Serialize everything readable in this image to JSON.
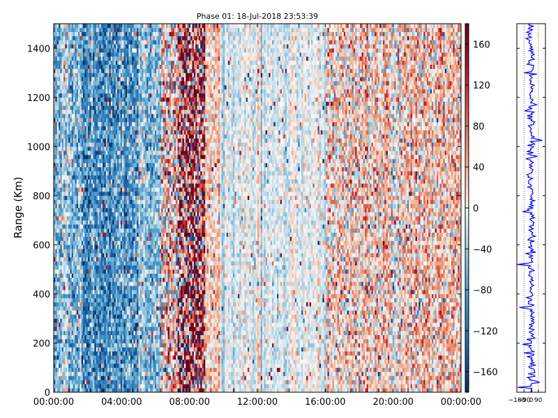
{
  "chart_data": {
    "type": "heatmap",
    "title": "Phase 01: 18-Jul-2018 23:53:39",
    "ylabel": "Range (Km)",
    "xlabel": "",
    "x_ticks": [
      "00:00:00",
      "04:00:00",
      "08:00:00",
      "12:00:00",
      "16:00:00",
      "20:00:00",
      "00:00:00"
    ],
    "x_range_hours": [
      0,
      24
    ],
    "y_ticks": [
      0,
      200,
      400,
      600,
      800,
      1000,
      1200,
      1400
    ],
    "ylim": [
      0,
      1500
    ],
    "colorbar": {
      "colormap": "RdBu_r",
      "range": [
        -180,
        180
      ],
      "ticks": [
        "160",
        "120",
        "80",
        "40",
        "0",
        "−40",
        "−80",
        "−120",
        "−160"
      ]
    },
    "phase_regimes": [
      {
        "start_hour": 0.0,
        "end_hour": 1.6,
        "mean_phase": -50,
        "noise": 45
      },
      {
        "start_hour": 1.6,
        "end_hour": 5.0,
        "mean_phase": -90,
        "noise": 45
      },
      {
        "start_hour": 5.0,
        "end_hour": 6.3,
        "mean_phase": -55,
        "noise": 40
      },
      {
        "start_hour": 6.3,
        "end_hour": 7.3,
        "mean_phase": 25,
        "noise": 70
      },
      {
        "start_hour": 7.3,
        "end_hour": 8.9,
        "mean_phase": 80,
        "noise": 130
      },
      {
        "start_hour": 8.9,
        "end_hour": 9.8,
        "mean_phase": 25,
        "noise": 30
      },
      {
        "start_hour": 9.8,
        "end_hour": 16.0,
        "mean_phase": -8,
        "noise": 18
      },
      {
        "start_hour": 16.0,
        "end_hour": 24.0,
        "mean_phase": 22,
        "noise": 45
      }
    ],
    "side_profile": {
      "type": "line",
      "x_ticks": [
        "−180",
        "−90",
        "0",
        "90"
      ],
      "xlim": [
        -180,
        180
      ],
      "ylim": [
        0,
        1500
      ],
      "spikes": [
        {
          "range_km": 20,
          "value": -170
        },
        {
          "range_km": 40,
          "value": 100
        },
        {
          "range_km": 160,
          "value": -90
        },
        {
          "range_km": 195,
          "value": -110
        },
        {
          "range_km": 345,
          "value": -150
        },
        {
          "range_km": 520,
          "value": -175
        },
        {
          "range_km": 735,
          "value": -110
        },
        {
          "range_km": 1025,
          "value": 140
        },
        {
          "range_km": 1145,
          "value": -80
        }
      ]
    }
  }
}
